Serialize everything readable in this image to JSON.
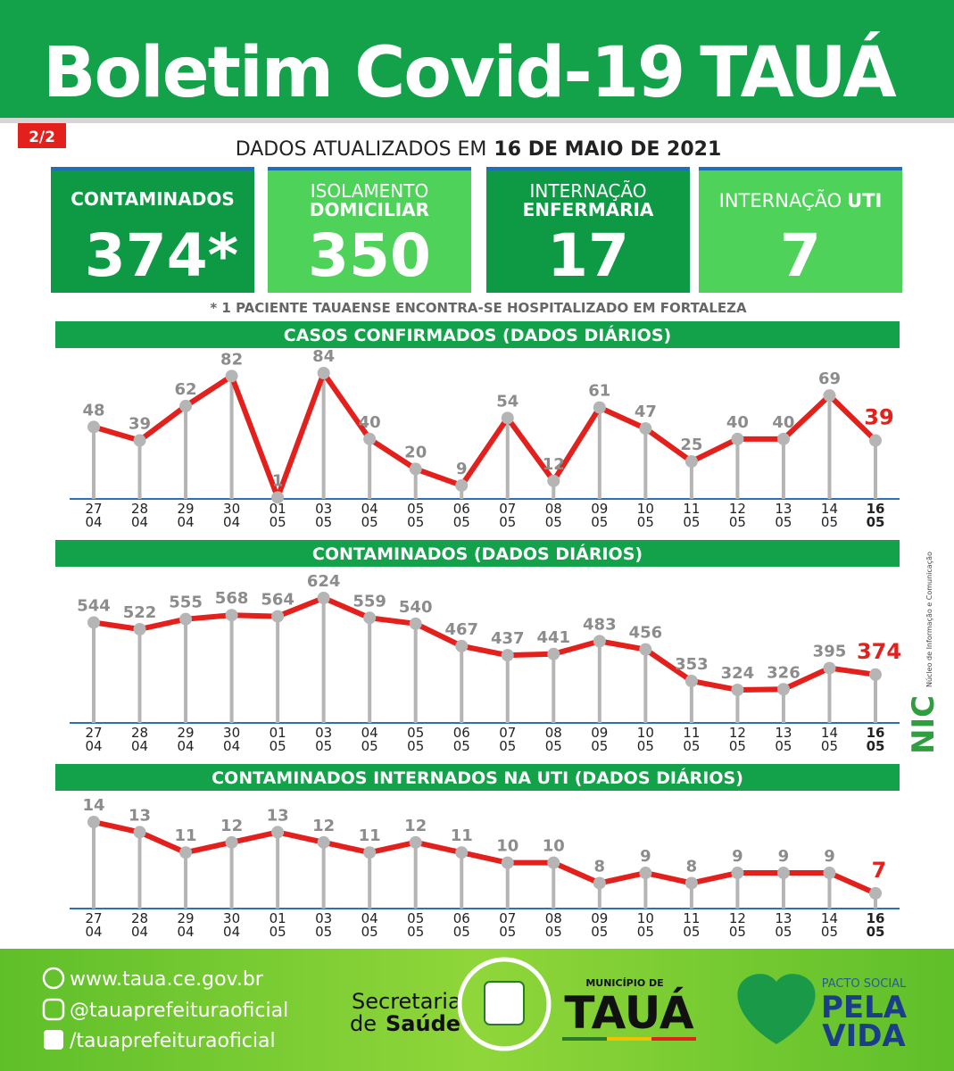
{
  "header": {
    "title": "Boletim Covid-19",
    "city": "TAUÁ",
    "page": "2/2",
    "updated_prefix": "DADOS ATUALIZADOS EM",
    "updated_date": "16 DE MAIO DE 2021"
  },
  "cards": [
    {
      "label_light": "",
      "label_bold": "CONTAMINADOS",
      "value": "374*"
    },
    {
      "label_light": "ISOLAMENTO",
      "label_bold": "DOMICILIAR",
      "value": "350"
    },
    {
      "label_light": "INTERNAÇÃO",
      "label_bold": "ENFERMARIA",
      "value": "17"
    },
    {
      "label_light": "INTERNAÇÃO",
      "label_bold": "UTI",
      "value": "7"
    }
  ],
  "note": "* 1 PACIENTE TAUAENSE ENCONTRA-SE HOSPITALIZADO EM FORTALEZA",
  "chart_data": [
    {
      "type": "line",
      "title": "CASOS CONFIRMADOS  (DADOS DIÁRIOS)",
      "categories": [
        [
          "27",
          "04"
        ],
        [
          "28",
          "04"
        ],
        [
          "29",
          "04"
        ],
        [
          "30",
          "04"
        ],
        [
          "01",
          "05"
        ],
        [
          "03",
          "05"
        ],
        [
          "04",
          "05"
        ],
        [
          "05",
          "05"
        ],
        [
          "06",
          "05"
        ],
        [
          "07",
          "05"
        ],
        [
          "08",
          "05"
        ],
        [
          "09",
          "05"
        ],
        [
          "10",
          "05"
        ],
        [
          "11",
          "05"
        ],
        [
          "12",
          "05"
        ],
        [
          "13",
          "05"
        ],
        [
          "14",
          "05"
        ],
        [
          "16",
          "05"
        ]
      ],
      "values": [
        48,
        39,
        62,
        82,
        1,
        84,
        40,
        20,
        9,
        54,
        12,
        61,
        47,
        25,
        40,
        40,
        69,
        39
      ],
      "ylim": [
        0,
        84
      ],
      "line_color": "#e3201b",
      "marker_color": "#b5b5b5",
      "label_color": "#8c8c8c",
      "highlight_color": "#e3201b"
    },
    {
      "type": "line",
      "title": "CONTAMINADOS  (DADOS DIÁRIOS)",
      "categories": [
        [
          "27",
          "04"
        ],
        [
          "28",
          "04"
        ],
        [
          "29",
          "04"
        ],
        [
          "30",
          "04"
        ],
        [
          "01",
          "05"
        ],
        [
          "03",
          "05"
        ],
        [
          "04",
          "05"
        ],
        [
          "05",
          "05"
        ],
        [
          "06",
          "05"
        ],
        [
          "07",
          "05"
        ],
        [
          "08",
          "05"
        ],
        [
          "09",
          "05"
        ],
        [
          "10",
          "05"
        ],
        [
          "11",
          "05"
        ],
        [
          "12",
          "05"
        ],
        [
          "13",
          "05"
        ],
        [
          "14",
          "05"
        ],
        [
          "16",
          "05"
        ]
      ],
      "values": [
        544,
        522,
        555,
        568,
        564,
        624,
        559,
        540,
        467,
        437,
        441,
        483,
        456,
        353,
        324,
        326,
        395,
        374
      ],
      "ylim": [
        216,
        624
      ],
      "line_color": "#e3201b",
      "marker_color": "#b5b5b5",
      "label_color": "#8c8c8c",
      "highlight_color": "#e3201b"
    },
    {
      "type": "line",
      "title": "CONTAMINADOS INTERNADOS NA UTI  (DADOS DIÁRIOS)",
      "categories": [
        [
          "27",
          "04"
        ],
        [
          "28",
          "04"
        ],
        [
          "29",
          "04"
        ],
        [
          "30",
          "04"
        ],
        [
          "01",
          "05"
        ],
        [
          "03",
          "05"
        ],
        [
          "04",
          "05"
        ],
        [
          "05",
          "05"
        ],
        [
          "06",
          "05"
        ],
        [
          "07",
          "05"
        ],
        [
          "08",
          "05"
        ],
        [
          "09",
          "05"
        ],
        [
          "10",
          "05"
        ],
        [
          "11",
          "05"
        ],
        [
          "12",
          "05"
        ],
        [
          "13",
          "05"
        ],
        [
          "14",
          "05"
        ],
        [
          "16",
          "05"
        ]
      ],
      "values": [
        14,
        13,
        11,
        12,
        13,
        12,
        11,
        12,
        11,
        10,
        10,
        8,
        9,
        8,
        9,
        9,
        9,
        7
      ],
      "ylim": [
        5.5,
        14
      ],
      "line_color": "#e3201b",
      "marker_color": "#b5b5b5",
      "label_color": "#8c8c8c",
      "highlight_color": "#e3201b"
    }
  ],
  "side_logo": {
    "name": "NIC",
    "caption": "Núcleo de Informação e Comunicação"
  },
  "footer": {
    "site": "www.taua.ce.gov.br",
    "instagram": "@tauaprefeituraoficial",
    "facebook": "/tauaprefeituraoficial",
    "secretaria_1": "Secretaria",
    "secretaria_2": "de",
    "secretaria_3": "Saúde",
    "municipio": "MUNICÍPIO DE",
    "municipio_name": "TAUÁ",
    "pacto": "PACTO SOCIAL",
    "pacto_1": "PELA",
    "pacto_2": "VIDA"
  }
}
